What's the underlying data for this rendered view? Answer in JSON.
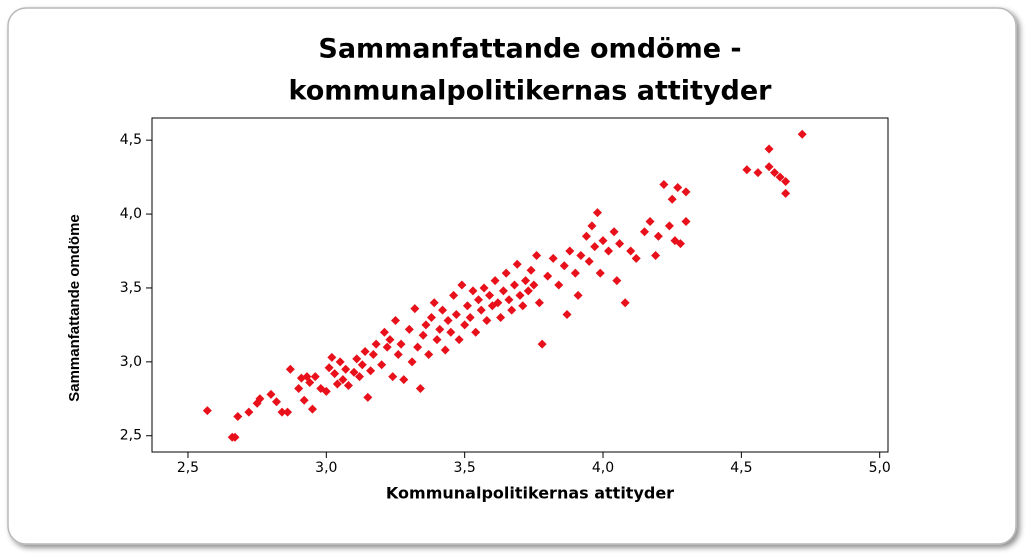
{
  "chart_data": {
    "type": "scatter",
    "title": "Sammanfattande omdöme -",
    "subtitle": "kommunalpolitikernas attityder",
    "x_label": "Kommunalpolitikernas attityder",
    "y_label": "Sammanfattande omdöme",
    "color": "#e8101a",
    "xlim": [
      2.37,
      5.03
    ],
    "ylim": [
      2.39,
      4.65
    ],
    "xticks": [
      {
        "value": 2.5,
        "label": "2,5"
      },
      {
        "value": 3.0,
        "label": "3,0"
      },
      {
        "value": 3.5,
        "label": "3,5"
      },
      {
        "value": 4.0,
        "label": "4,0"
      },
      {
        "value": 4.5,
        "label": "4,5"
      },
      {
        "value": 5.0,
        "label": "5,0"
      }
    ],
    "yticks": [
      {
        "value": 2.5,
        "label": "2,5"
      },
      {
        "value": 3.0,
        "label": "3,0"
      },
      {
        "value": 3.5,
        "label": "3,5"
      },
      {
        "value": 4.0,
        "label": "4,0"
      },
      {
        "value": 4.5,
        "label": "4,5"
      }
    ],
    "x": [
      2.57,
      2.66,
      2.67,
      2.68,
      2.72,
      2.75,
      2.76,
      2.8,
      2.82,
      2.84,
      2.86,
      2.87,
      2.9,
      2.91,
      2.92,
      2.93,
      2.94,
      2.95,
      2.96,
      2.98,
      3.0,
      3.01,
      3.02,
      3.03,
      3.04,
      3.05,
      3.06,
      3.07,
      3.08,
      3.1,
      3.11,
      3.12,
      3.13,
      3.14,
      3.15,
      3.16,
      3.17,
      3.18,
      3.2,
      3.21,
      3.22,
      3.23,
      3.24,
      3.25,
      3.26,
      3.27,
      3.28,
      3.3,
      3.31,
      3.32,
      3.33,
      3.34,
      3.35,
      3.36,
      3.37,
      3.38,
      3.39,
      3.4,
      3.41,
      3.42,
      3.43,
      3.44,
      3.45,
      3.46,
      3.47,
      3.48,
      3.49,
      3.5,
      3.51,
      3.52,
      3.53,
      3.54,
      3.55,
      3.56,
      3.57,
      3.58,
      3.59,
      3.6,
      3.61,
      3.62,
      3.63,
      3.64,
      3.65,
      3.66,
      3.67,
      3.68,
      3.69,
      3.7,
      3.71,
      3.72,
      3.73,
      3.74,
      3.75,
      3.76,
      3.77,
      3.78,
      3.8,
      3.82,
      3.84,
      3.86,
      3.87,
      3.88,
      3.9,
      3.91,
      3.92,
      3.94,
      3.95,
      3.96,
      3.97,
      3.98,
      3.99,
      4.0,
      4.02,
      4.04,
      4.05,
      4.06,
      4.08,
      4.1,
      4.12,
      4.15,
      4.17,
      4.19,
      4.2,
      4.22,
      4.24,
      4.25,
      4.26,
      4.27,
      4.28,
      4.3,
      4.3,
      4.52,
      4.56,
      4.6,
      4.6,
      4.62,
      4.64,
      4.66,
      4.66,
      4.72
    ],
    "values": [
      2.67,
      2.49,
      2.49,
      2.63,
      2.66,
      2.72,
      2.75,
      2.78,
      2.73,
      2.66,
      2.66,
      2.95,
      2.82,
      2.89,
      2.74,
      2.9,
      2.86,
      2.68,
      2.9,
      2.82,
      2.8,
      2.96,
      3.03,
      2.92,
      2.85,
      3.0,
      2.88,
      2.95,
      2.84,
      2.93,
      3.02,
      2.9,
      2.98,
      3.07,
      2.76,
      2.94,
      3.05,
      3.12,
      2.98,
      3.2,
      3.1,
      3.15,
      2.9,
      3.28,
      3.05,
      3.12,
      2.88,
      3.22,
      3.0,
      3.36,
      3.1,
      2.82,
      3.18,
      3.25,
      3.05,
      3.3,
      3.4,
      3.15,
      3.22,
      3.35,
      3.08,
      3.28,
      3.2,
      3.45,
      3.32,
      3.15,
      3.52,
      3.25,
      3.38,
      3.3,
      3.48,
      3.2,
      3.42,
      3.35,
      3.5,
      3.28,
      3.45,
      3.38,
      3.55,
      3.4,
      3.3,
      3.48,
      3.6,
      3.42,
      3.35,
      3.52,
      3.66,
      3.45,
      3.38,
      3.55,
      3.48,
      3.62,
      3.52,
      3.72,
      3.4,
      3.12,
      3.58,
      3.7,
      3.52,
      3.65,
      3.32,
      3.75,
      3.6,
      3.45,
      3.72,
      3.85,
      3.68,
      3.92,
      3.78,
      4.01,
      3.6,
      3.82,
      3.75,
      3.88,
      3.55,
      3.8,
      3.4,
      3.75,
      3.7,
      3.88,
      3.95,
      3.72,
      3.85,
      4.2,
      3.92,
      4.1,
      3.82,
      4.18,
      3.8,
      4.15,
      3.95,
      4.3,
      4.28,
      4.32,
      4.44,
      4.28,
      4.25,
      4.14,
      4.22,
      4.54
    ]
  }
}
